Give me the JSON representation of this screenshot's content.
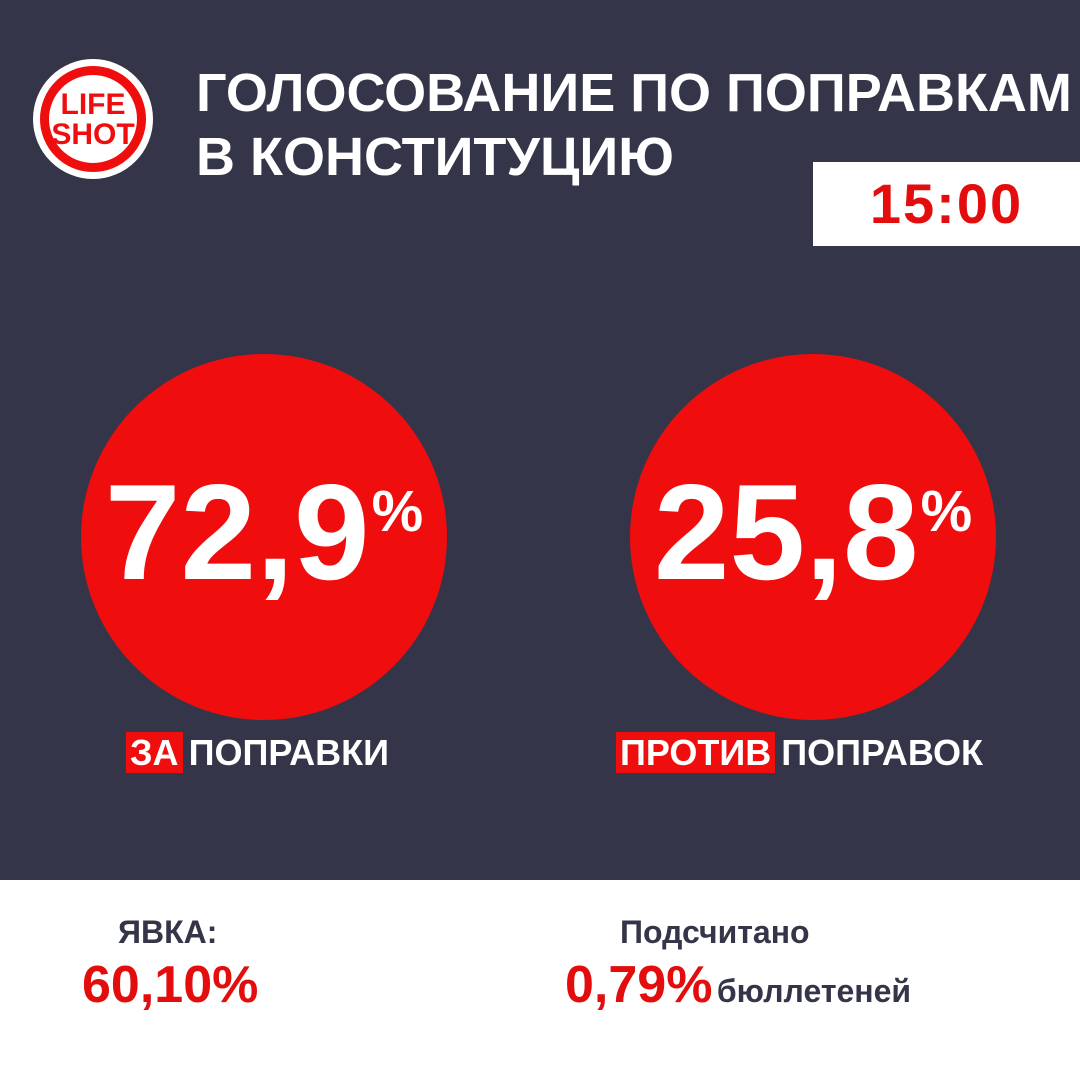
{
  "logo": {
    "line1": "LIFE",
    "line2": "SHOT"
  },
  "header": {
    "title_line1": "ГОЛОСОВАНИЕ ПО ПОПРАВКАМ",
    "title_line2": "В КОНСТИТУЦИЮ",
    "time": "15:00"
  },
  "results": [
    {
      "value": "72,9",
      "unit": "%",
      "highlight": "ЗА",
      "label": "ПОПРАВКИ"
    },
    {
      "value": "25,8",
      "unit": "%",
      "highlight": "ПРОТИВ",
      "label": "ПОПРАВОК"
    }
  ],
  "footer": {
    "turnout": {
      "label": "ЯВКА:",
      "value": "60,10%"
    },
    "counted": {
      "label": "Подсчитано",
      "value": "0,79%",
      "suffix": "бюллетеней"
    }
  }
}
